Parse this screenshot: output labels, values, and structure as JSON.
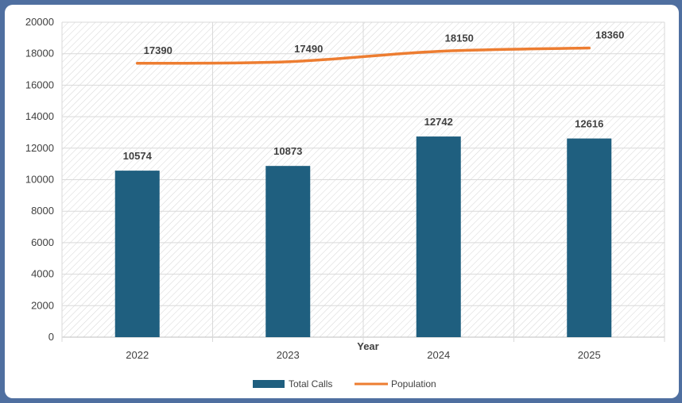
{
  "chart_data": {
    "type": "bar",
    "categories": [
      "2022",
      "2023",
      "2024",
      "2025"
    ],
    "series": [
      {
        "name": "Total Calls",
        "type": "bar",
        "color": "#1f5f7f",
        "values": [
          10574,
          10873,
          12742,
          12616
        ]
      },
      {
        "name": "Population",
        "type": "line",
        "color": "#ed7d31",
        "values": [
          17390,
          17490,
          18150,
          18360
        ]
      }
    ],
    "title": "",
    "xlabel": "Year",
    "ylabel": "",
    "ylim": [
      0,
      20000
    ],
    "yticks": [
      0,
      2000,
      4000,
      6000,
      8000,
      10000,
      12000,
      14000,
      16000,
      18000,
      20000
    ],
    "grid": true,
    "legend_position": "bottom"
  }
}
